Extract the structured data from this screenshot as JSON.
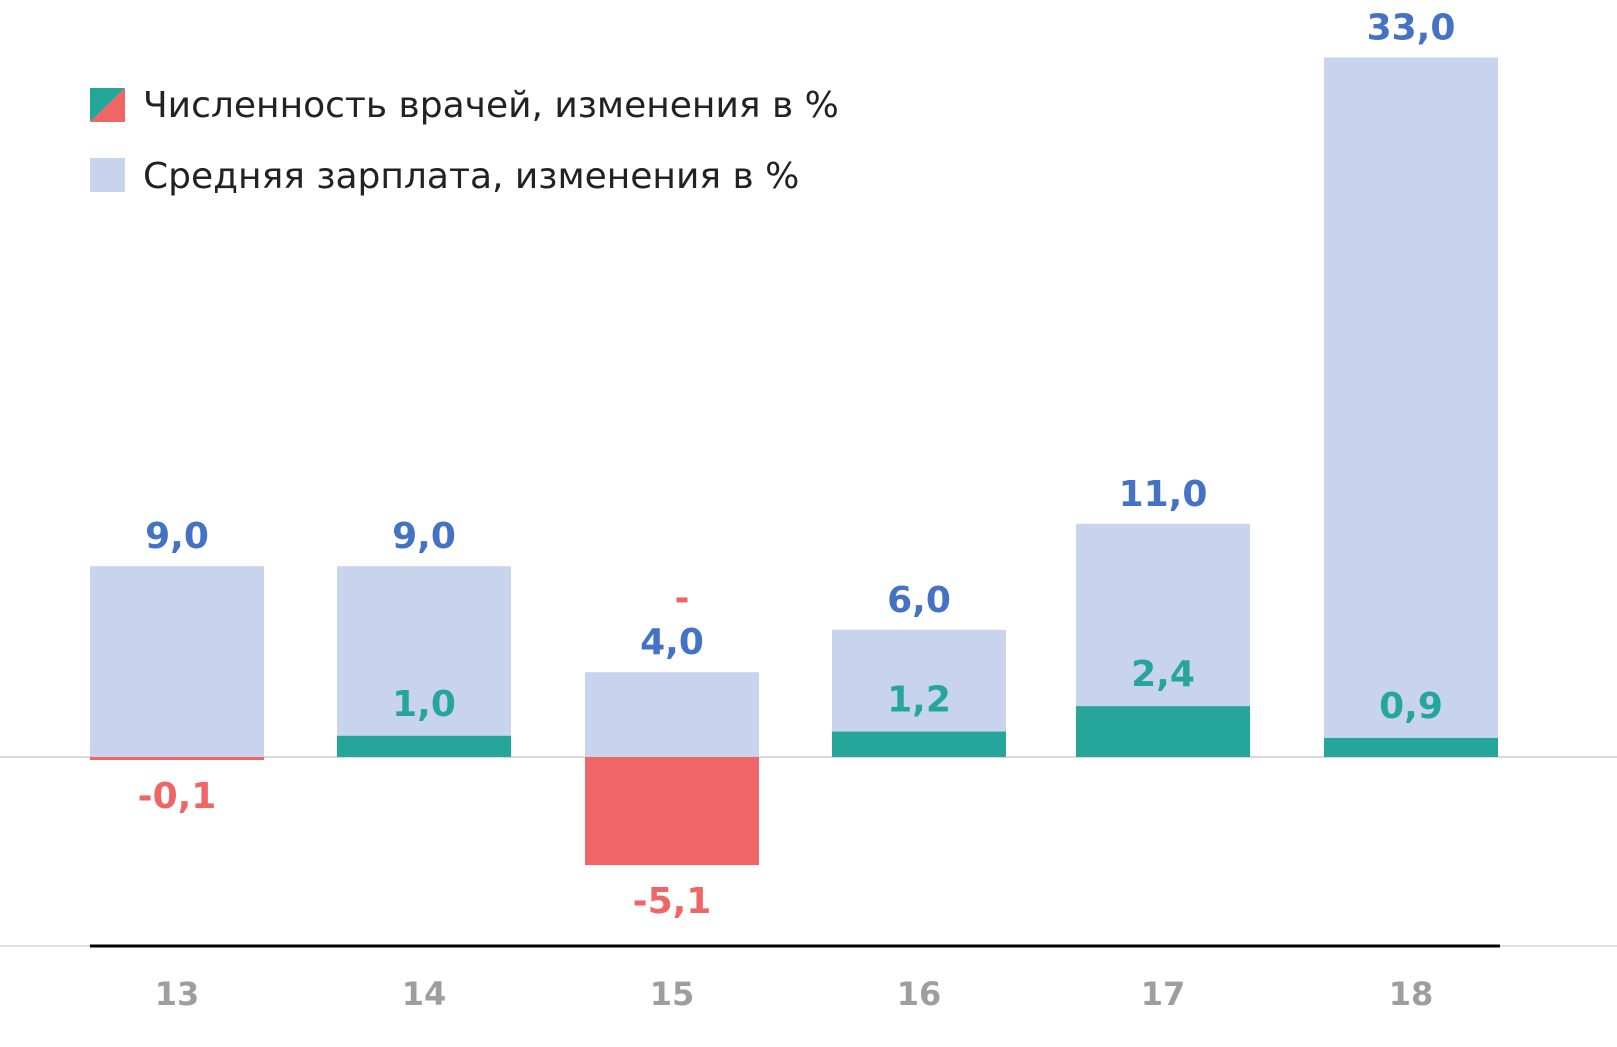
{
  "chart_data": {
    "type": "bar",
    "categories": [
      "13",
      "14",
      "15",
      "16",
      "17",
      "18"
    ],
    "series": [
      {
        "name": "Численность врачей, изменения в %",
        "values": [
          -0.1,
          1.0,
          -5.1,
          1.2,
          2.4,
          0.9
        ],
        "labels": [
          "-0,1",
          "1,0",
          "-5,1",
          "1,2",
          "2,4",
          "0,9"
        ]
      },
      {
        "name": "Средняя зарплата, изменения в %",
        "values": [
          9.0,
          9.0,
          4.0,
          6.0,
          11.0,
          33.0
        ],
        "labels": [
          "9,0",
          "9,0",
          "4,0",
          "6,0",
          "11,0",
          "33,0"
        ]
      }
    ],
    "extra_annotations": [
      {
        "category": "15",
        "text": "-"
      }
    ],
    "ylim": [
      -5.1,
      33.0
    ],
    "grid": false,
    "legend_position": "top-left",
    "colors": {
      "positive": "#26a69a",
      "negative": "#f06666",
      "salary": "#c8d4ee",
      "salary_label": "#4472c4",
      "axis": "#000000",
      "zero_line": "#d9d9d9",
      "tick_label": "#9e9e9e"
    }
  }
}
